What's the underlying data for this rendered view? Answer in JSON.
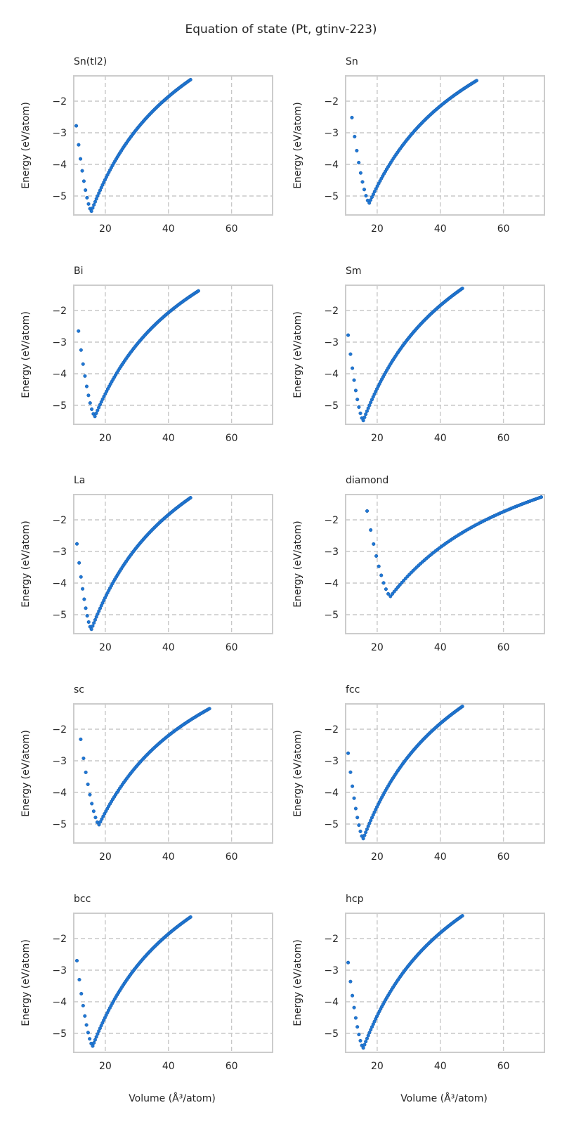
{
  "figure": {
    "title": "Equation of state (Pt, gtinv-223)",
    "xlabel": "Volume (Å³/atom)",
    "ylabel": "Energy (eV/atom)",
    "marker_color": "#1f77d4"
  },
  "chart_data": [
    {
      "type": "scatter",
      "title": "Sn(tI2)",
      "xlim": [
        10,
        73
      ],
      "ylim": [
        -5.6,
        -1.2
      ],
      "xticks": [
        20,
        40,
        60
      ],
      "yticks": [
        -2,
        -3,
        -4,
        -5
      ],
      "grid": true,
      "vmin": 10.8,
      "vmax": 47.0,
      "emin": -5.48,
      "v0": 15.6,
      "ehigh": -1.32
    },
    {
      "type": "scatter",
      "title": "Sn",
      "xlim": [
        10,
        73
      ],
      "ylim": [
        -5.6,
        -1.2
      ],
      "xticks": [
        20,
        40,
        60
      ],
      "yticks": [
        -2,
        -3,
        -4,
        -5
      ],
      "grid": true,
      "vmin": 12.0,
      "vmax": 51.5,
      "emin": -5.22,
      "v0": 17.5,
      "ehigh": -1.35
    },
    {
      "type": "scatter",
      "title": "Bi",
      "xlim": [
        10,
        73
      ],
      "ylim": [
        -5.6,
        -1.2
      ],
      "xticks": [
        20,
        40,
        60
      ],
      "yticks": [
        -2,
        -3,
        -4,
        -5
      ],
      "grid": true,
      "vmin": 11.5,
      "vmax": 49.5,
      "emin": -5.35,
      "v0": 16.7,
      "ehigh": -1.38
    },
    {
      "type": "scatter",
      "title": "Sm",
      "xlim": [
        10,
        73
      ],
      "ylim": [
        -5.6,
        -1.2
      ],
      "xticks": [
        20,
        40,
        60
      ],
      "yticks": [
        -2,
        -3,
        -4,
        -5
      ],
      "grid": true,
      "vmin": 10.8,
      "vmax": 47.0,
      "emin": -5.48,
      "v0": 15.6,
      "ehigh": -1.3
    },
    {
      "type": "scatter",
      "title": "La",
      "xlim": [
        10,
        73
      ],
      "ylim": [
        -5.6,
        -1.2
      ],
      "xticks": [
        20,
        40,
        60
      ],
      "yticks": [
        -2,
        -3,
        -4,
        -5
      ],
      "grid": true,
      "vmin": 11.0,
      "vmax": 47.0,
      "emin": -5.46,
      "v0": 15.6,
      "ehigh": -1.3
    },
    {
      "type": "scatter",
      "title": "diamond",
      "xlim": [
        10,
        73
      ],
      "ylim": [
        -5.6,
        -1.2
      ],
      "xticks": [
        20,
        40,
        60
      ],
      "yticks": [
        -2,
        -3,
        -4,
        -5
      ],
      "grid": true,
      "vmin": 16.8,
      "vmax": 72.0,
      "emin": -4.42,
      "v0": 24.2,
      "ehigh": -1.28
    },
    {
      "type": "scatter",
      "title": "sc",
      "xlim": [
        10,
        73
      ],
      "ylim": [
        -5.6,
        -1.2
      ],
      "xticks": [
        20,
        40,
        60
      ],
      "yticks": [
        -2,
        -3,
        -4,
        -5
      ],
      "grid": true,
      "vmin": 12.2,
      "vmax": 53.0,
      "emin": -5.02,
      "v0": 18.0,
      "ehigh": -1.35
    },
    {
      "type": "scatter",
      "title": "fcc",
      "xlim": [
        10,
        73
      ],
      "ylim": [
        -5.6,
        -1.2
      ],
      "xticks": [
        20,
        40,
        60
      ],
      "yticks": [
        -2,
        -3,
        -4,
        -5
      ],
      "grid": true,
      "vmin": 10.8,
      "vmax": 47.0,
      "emin": -5.46,
      "v0": 15.6,
      "ehigh": -1.28
    },
    {
      "type": "scatter",
      "title": "bcc",
      "xlim": [
        10,
        73
      ],
      "ylim": [
        -5.6,
        -1.2
      ],
      "xticks": [
        20,
        40,
        60
      ],
      "yticks": [
        -2,
        -3,
        -4,
        -5
      ],
      "grid": true,
      "vmin": 11.0,
      "vmax": 47.0,
      "emin": -5.4,
      "v0": 16.0,
      "ehigh": -1.32
    },
    {
      "type": "scatter",
      "title": "hcp",
      "xlim": [
        10,
        73
      ],
      "ylim": [
        -5.6,
        -1.2
      ],
      "xticks": [
        20,
        40,
        60
      ],
      "yticks": [
        -2,
        -3,
        -4,
        -5
      ],
      "grid": true,
      "vmin": 10.8,
      "vmax": 47.0,
      "emin": -5.46,
      "v0": 15.6,
      "ehigh": -1.28
    }
  ]
}
